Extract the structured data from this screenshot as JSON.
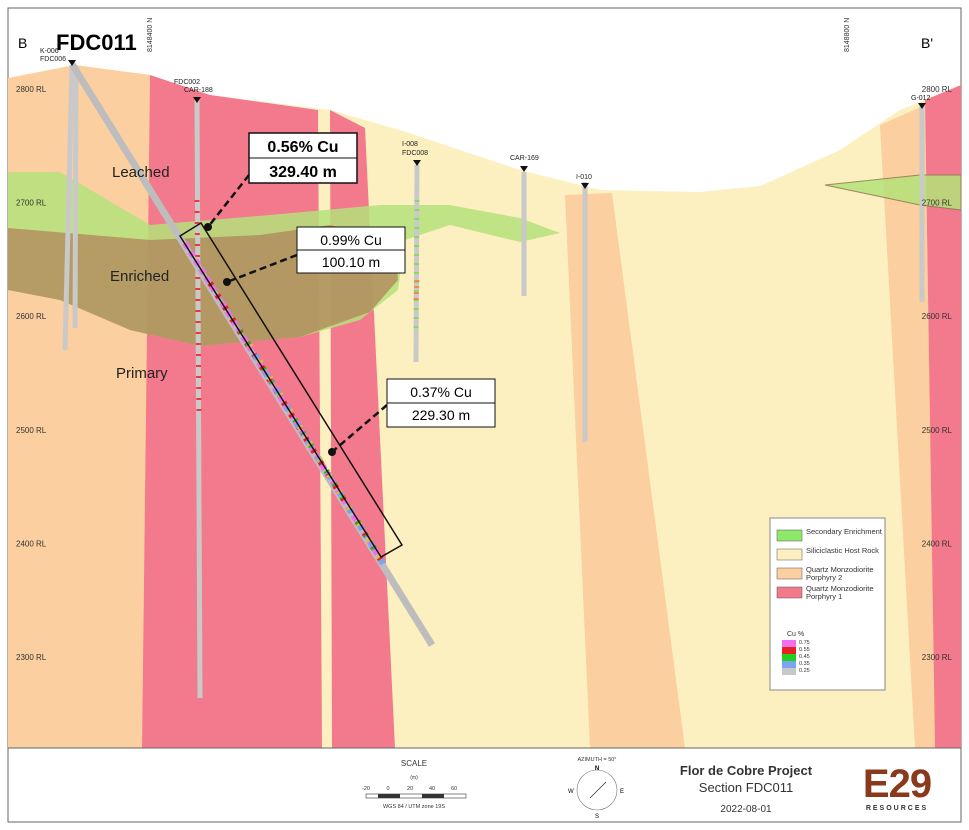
{
  "section": {
    "start": "B",
    "end": "B'",
    "hole": "FDC011",
    "northings": [
      "8148400 N",
      "8148800 N"
    ]
  },
  "rl_left": [
    "2800 RL",
    "2700 RL",
    "2600 RL",
    "2500 RL",
    "2400 RL",
    "2300 RL"
  ],
  "rl_right": [
    "2800 RL",
    "2700 RL",
    "2600 RL",
    "2500 RL",
    "2400 RL",
    "2300 RL"
  ],
  "holes": [
    "K-006",
    "FDC006",
    "FDC002",
    "CAR-188",
    "I-008",
    "FDC008",
    "CAR-169",
    "I-010",
    "G-012"
  ],
  "zones": [
    "Leached",
    "Enriched",
    "Primary"
  ],
  "callouts": [
    {
      "grade": "0.56% Cu",
      "length": "329.40 m"
    },
    {
      "grade": "0.99% Cu",
      "length": "100.10 m"
    },
    {
      "grade": "0.37% Cu",
      "length": "229.30 m"
    }
  ],
  "legend": {
    "items": [
      "Secondary Enrichment",
      "Siliciclastic Host Rock",
      "Quartz Monzodiorite Porphyry 2",
      "Quartz Monzodiorite Porphyry 1"
    ],
    "cu_title": "Cu %",
    "cu_values": [
      "0.75",
      "0.55",
      "0.45",
      "0.35",
      "0.25"
    ]
  },
  "scale": {
    "title": "SCALE",
    "unit": "(m)",
    "ticks": [
      "-20",
      "0",
      "20",
      "40",
      "60"
    ],
    "datum": "WGS 84 / UTM zone 19S"
  },
  "azimuth": {
    "label": "AZIMUTH = 50°",
    "n": "N",
    "e": "E",
    "s": "S",
    "w": "W"
  },
  "title_block": {
    "project": "Flor de Cobre Project",
    "section": "Section FDC011",
    "date": "2022-08-01",
    "logo": "E29",
    "logo_sub": "RESOURCES"
  }
}
